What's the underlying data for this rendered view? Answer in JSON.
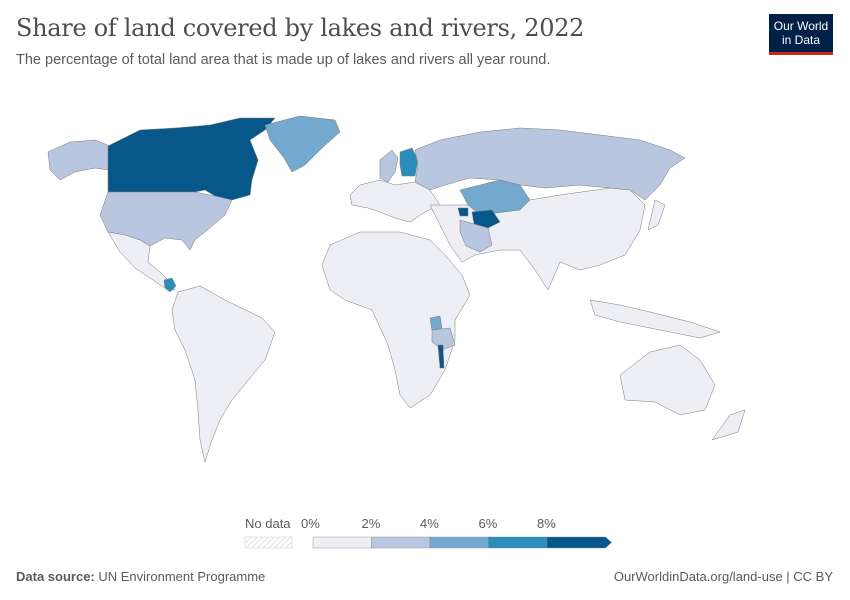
{
  "header": {
    "title": "Share of land covered by lakes and rivers, 2022",
    "subtitle": "The percentage of total land area that is made up of lakes and rivers all year round.",
    "logo_line1": "Our World",
    "logo_line2": "in Data"
  },
  "legend": {
    "no_data_label": "No data",
    "ticks": [
      "0%",
      "2%",
      "4%",
      "6%",
      "8%"
    ],
    "bins": [
      {
        "range": [
          0,
          2
        ],
        "color": "#eeeef5"
      },
      {
        "range": [
          2,
          4
        ],
        "color": "#b9c6df"
      },
      {
        "range": [
          4,
          6
        ],
        "color": "#74a9cf"
      },
      {
        "range": [
          6,
          8
        ],
        "color": "#2b8cbe"
      },
      {
        "range": [
          8,
          null
        ],
        "color": "#08578a"
      }
    ]
  },
  "map": {
    "default_bin": 0,
    "regions": [
      {
        "id": "canada",
        "bin": 4
      },
      {
        "id": "usa",
        "bin": 1
      },
      {
        "id": "alaska",
        "bin": 1
      },
      {
        "id": "greenland",
        "bin": 2
      },
      {
        "id": "russia",
        "bin": 1
      },
      {
        "id": "kazakhstan",
        "bin": 2
      },
      {
        "id": "finland",
        "bin": 3
      },
      {
        "id": "sweden",
        "bin": 1
      },
      {
        "id": "turkmenistan",
        "bin": 4
      },
      {
        "id": "azerbaijan",
        "bin": 4
      },
      {
        "id": "iran",
        "bin": 1
      },
      {
        "id": "uganda",
        "bin": 2
      },
      {
        "id": "tanzania",
        "bin": 1
      },
      {
        "id": "malawi",
        "bin": 4
      },
      {
        "id": "nicaragua",
        "bin": 3
      }
    ]
  },
  "footer": {
    "source_label": "Data source:",
    "source_value": "UN Environment Programme",
    "link": "OurWorldinData.org/land-use | CC BY"
  }
}
